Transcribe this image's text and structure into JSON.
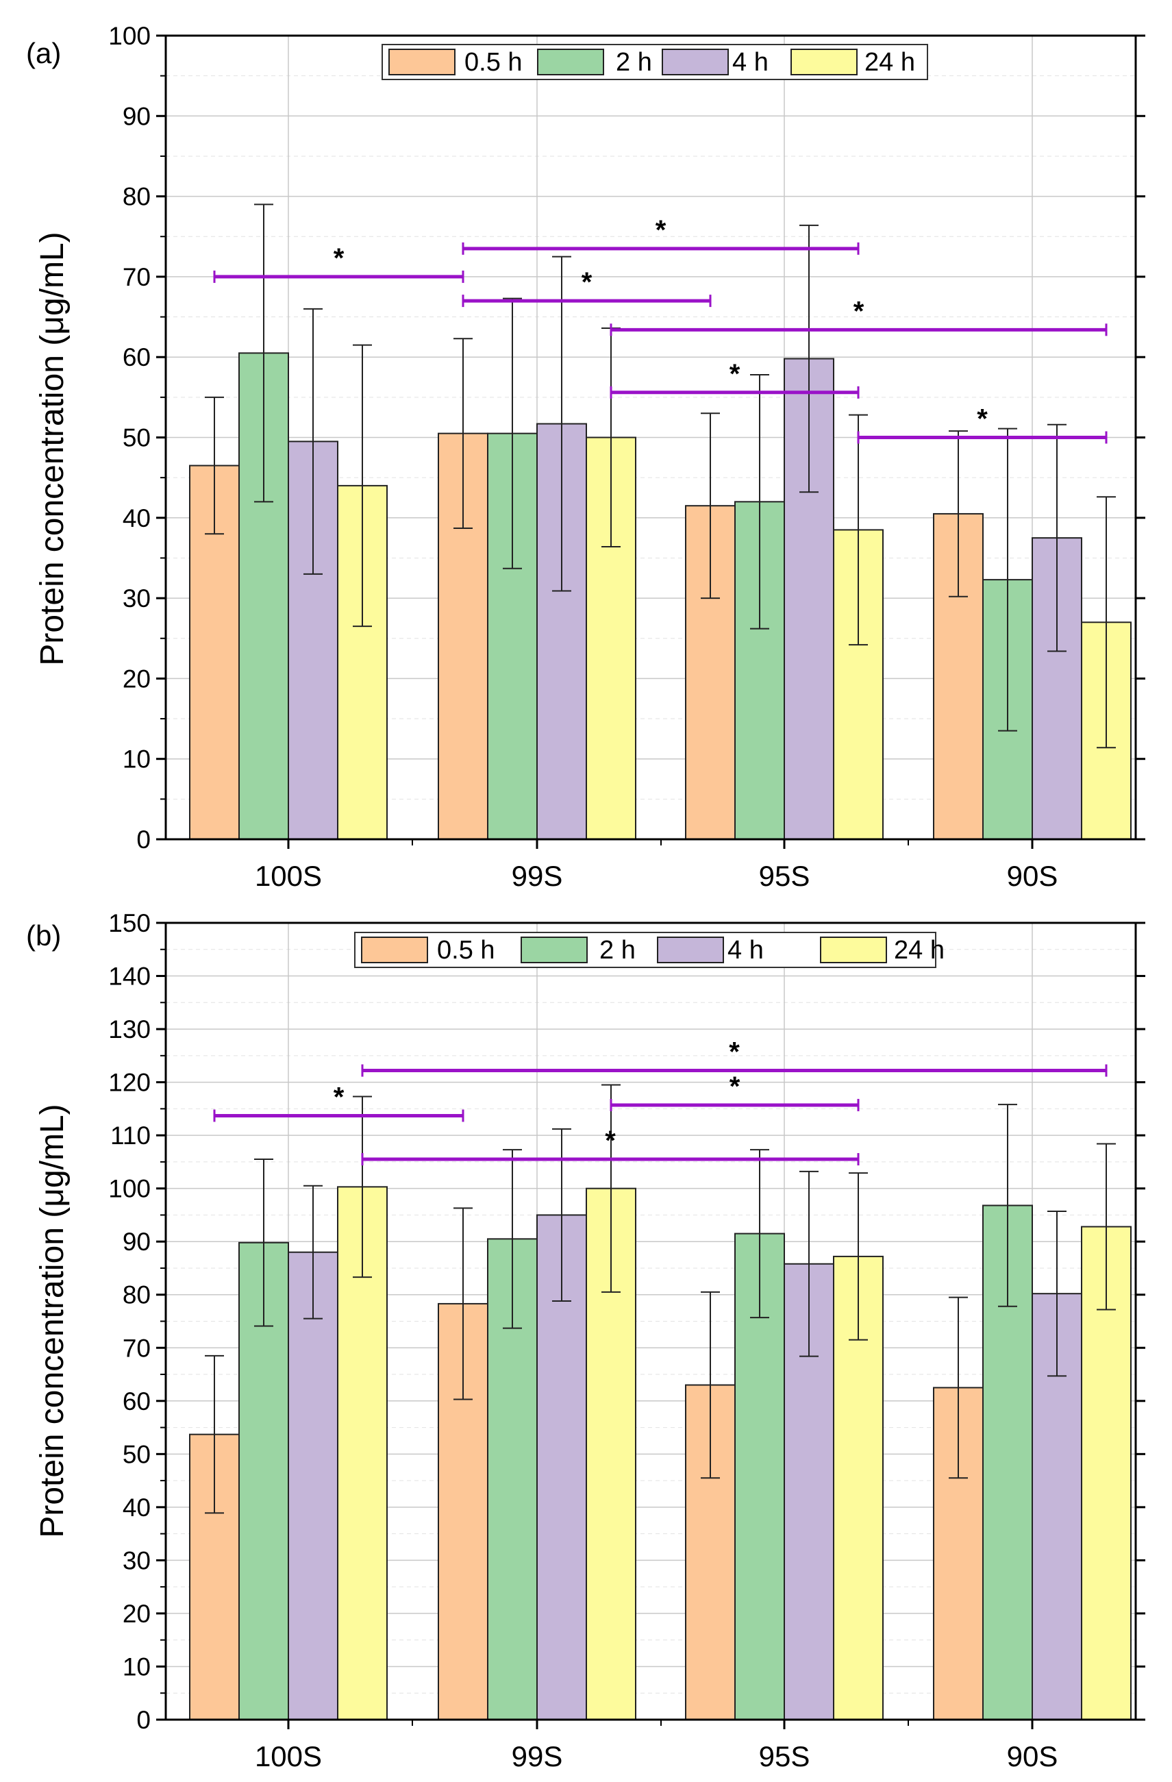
{
  "series_colors": {
    "0.5 h": "#fdc797",
    "2 h": "#9bd5a3",
    "4 h": "#c5b6d9",
    "24 h": "#fdfb9c"
  },
  "sig_color": "#9a12c8",
  "chart_data": [
    {
      "type": "bar",
      "panel_label": "(a)",
      "ylabel": "Protein concentration (μg/mL)",
      "xlabel": "",
      "ylim": [
        0,
        100
      ],
      "yticks": [
        "0",
        "10",
        "20",
        "30",
        "40",
        "50",
        "60",
        "70",
        "80",
        "90",
        "100"
      ],
      "grid": true,
      "legend_position": "top-center",
      "categories": [
        "100S",
        "99S",
        "95S",
        "90S"
      ],
      "series": [
        {
          "name": "0.5 h",
          "values": [
            46.5,
            50.5,
            41.5,
            40.5
          ],
          "errors": [
            8.5,
            11.8,
            11.5,
            10.3
          ]
        },
        {
          "name": "2 h",
          "values": [
            60.5,
            50.5,
            42.0,
            32.3
          ],
          "errors": [
            18.5,
            16.8,
            15.8,
            18.8
          ]
        },
        {
          "name": "4 h",
          "values": [
            49.5,
            51.7,
            59.8,
            37.5
          ],
          "errors": [
            16.5,
            20.8,
            16.6,
            14.1
          ]
        },
        {
          "name": "24 h",
          "values": [
            44.0,
            50.0,
            38.5,
            27.0
          ],
          "errors": [
            17.5,
            13.6,
            14.3,
            15.6
          ]
        }
      ],
      "significance": [
        {
          "label": "*",
          "from": "100S/0.5 h",
          "to": "99S/0.5 h",
          "y": 70
        },
        {
          "label": "*",
          "from": "99S/0.5 h",
          "to": "95S/24 h",
          "y": 73.5
        },
        {
          "label": "*",
          "from": "99S/0.5 h",
          "to": "95S/0.5 h",
          "y": 67
        },
        {
          "label": "*",
          "from": "99S/24 h",
          "to": "90S/24 h",
          "y": 63.4
        },
        {
          "label": "*",
          "from": "99S/24 h",
          "to": "95S/24 h",
          "y": 55.6
        },
        {
          "label": "*",
          "from": "95S/24 h",
          "to": "90S/24 h",
          "y": 50
        }
      ]
    },
    {
      "type": "bar",
      "panel_label": "(b)",
      "ylabel": "Protein concentration (μg/mL)",
      "xlabel": "",
      "ylim": [
        0,
        150
      ],
      "yticks": [
        "0",
        "10",
        "20",
        "30",
        "40",
        "50",
        "60",
        "70",
        "80",
        "90",
        "100",
        "110",
        "120",
        "130",
        "140",
        "150"
      ],
      "grid": true,
      "legend_position": "top-center",
      "categories": [
        "100S",
        "99S",
        "95S",
        "90S"
      ],
      "series": [
        {
          "name": "0.5 h",
          "values": [
            53.7,
            78.3,
            63.0,
            62.5
          ],
          "errors": [
            14.8,
            18.0,
            17.5,
            17.0
          ]
        },
        {
          "name": "2 h",
          "values": [
            89.8,
            90.5,
            91.5,
            96.8
          ],
          "errors": [
            15.7,
            16.8,
            15.8,
            19.0
          ]
        },
        {
          "name": "4 h",
          "values": [
            88.0,
            95.0,
            85.8,
            80.2
          ],
          "errors": [
            12.5,
            16.2,
            17.4,
            15.5
          ]
        },
        {
          "name": "24 h",
          "values": [
            100.3,
            100.0,
            87.2,
            92.8
          ],
          "errors": [
            17.0,
            19.5,
            15.7,
            15.6
          ]
        }
      ],
      "significance": [
        {
          "label": "*",
          "from": "100S/0.5 h",
          "to": "99S/0.5 h",
          "y": 113.7
        },
        {
          "label": "*",
          "from": "100S/24 h",
          "to": "90S/24 h",
          "y": 122.2
        },
        {
          "label": "*",
          "from": "99S/24 h",
          "to": "95S/24 h",
          "y": 115.7
        },
        {
          "label": "*",
          "from": "100S/24 h",
          "to": "95S/24 h",
          "y": 105.5
        }
      ]
    }
  ]
}
